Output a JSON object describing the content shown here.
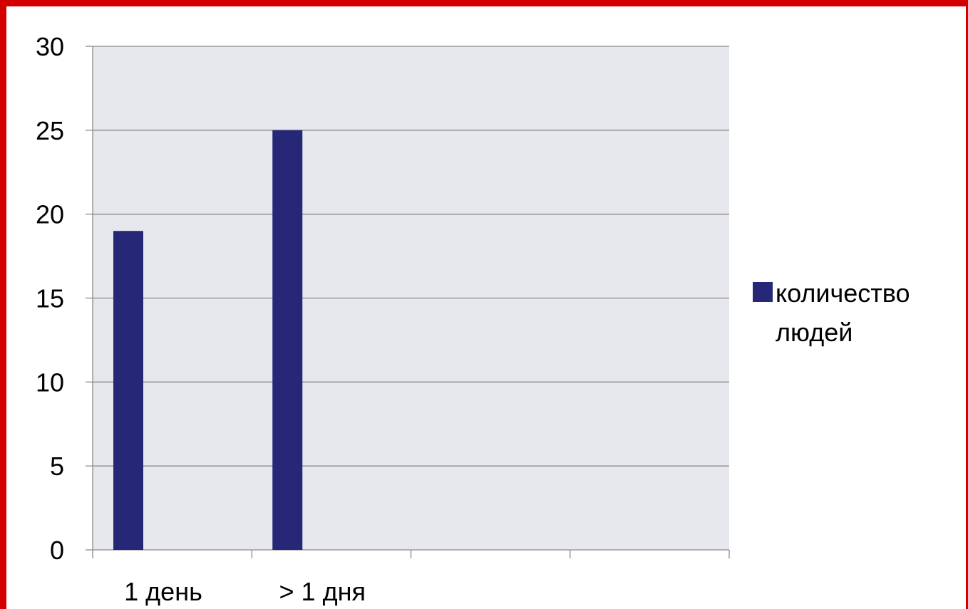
{
  "chart_data": {
    "type": "bar",
    "title": "",
    "xlabel": "",
    "ylabel": "",
    "categories": [
      "1 день",
      "> 1 дня",
      "",
      ""
    ],
    "series": [
      {
        "name": "количество людей",
        "values": [
          19,
          25,
          null,
          null
        ]
      }
    ],
    "ylim": [
      0,
      30
    ],
    "y_ticks": [
      "0",
      "5",
      "10",
      "15",
      "20",
      "25",
      "30"
    ],
    "grid": true,
    "legend_position": "right",
    "legend_lines": [
      "количество",
      "людей"
    ]
  },
  "colors": {
    "frame": "#d40000",
    "plot_background": "#e7e8ee",
    "bar": "#262776",
    "grid": "#8a8a8a"
  }
}
